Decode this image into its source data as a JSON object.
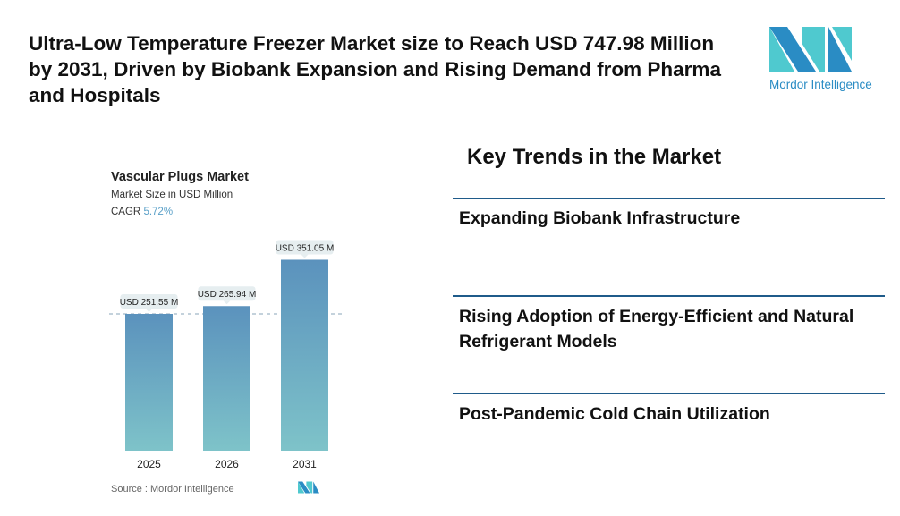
{
  "title": "Ultra-Low Temperature Freezer Market size to Reach USD 747.98 Million by 2031, Driven by Biobank Expansion and Rising Demand from Pharma and Hospitals",
  "logo": {
    "text": "Mordor Intelligence",
    "colors": [
      "#2a8cc4",
      "#4fc9cf"
    ]
  },
  "chart_data": {
    "type": "bar",
    "title": "Vascular Plugs Market",
    "subtitle": "Market Size in USD Million",
    "cagr_label": "CAGR",
    "cagr_value": "5.72%",
    "categories": [
      "2025",
      "2026",
      "2031"
    ],
    "values": [
      251.55,
      265.94,
      351.05
    ],
    "data_labels": [
      "USD 251.55 M",
      "USD 265.94 M",
      "USD 351.05 M"
    ],
    "ylim": [
      0,
      400
    ],
    "grid": false,
    "reference_line": "dashed at first bar value",
    "bar_color_top": "#5b92bd",
    "bar_color_bottom": "#7ec3c9",
    "source": "Source :  Mordor Intelligence"
  },
  "trends": {
    "heading": "Key Trends in the Market",
    "items": [
      "Expanding Biobank Infrastructure",
      "Rising Adoption of Energy-Efficient and Natural Refrigerant Models",
      "Post-Pandemic Cold Chain Utilization"
    ]
  }
}
